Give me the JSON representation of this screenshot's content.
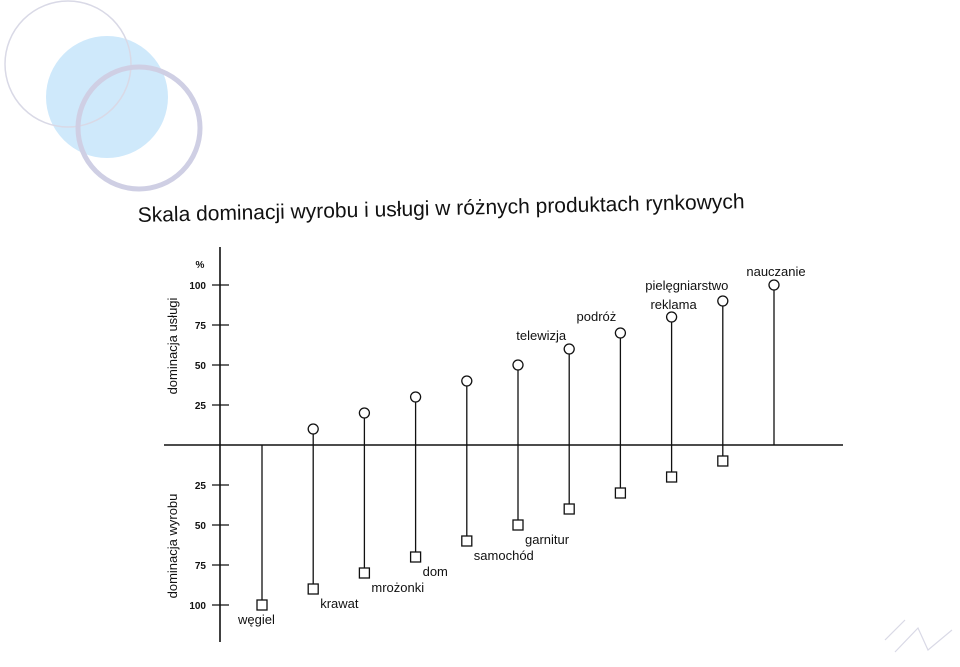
{
  "title": "Skala dominacji wyrobu i usługi w różnych produktach rynkowych",
  "colors": {
    "deco_fill": "#cfe9fb",
    "deco_ring_light": "#d9d9e6",
    "deco_ring_dark": "#cfcfe4",
    "ink": "#111111"
  },
  "chart_data": {
    "type": "scatter",
    "style": "paired-stem",
    "y_unit": "%",
    "y_upper_label": "dominacja usługi",
    "y_lower_label": "dominacja wyrobu",
    "y_ticks_upper": [
      "25",
      "50",
      "75",
      "100"
    ],
    "y_ticks_lower": [
      "25",
      "50",
      "75",
      "100"
    ],
    "ylim": [
      -100,
      100
    ],
    "markers": {
      "service": "circle",
      "product": "square"
    },
    "items": [
      {
        "label": "węgiel",
        "service": 0,
        "product": 100
      },
      {
        "label": "krawat",
        "service": 10,
        "product": 90
      },
      {
        "label": "mrożonki",
        "service": 20,
        "product": 80
      },
      {
        "label": "dom",
        "service": 30,
        "product": 70
      },
      {
        "label": "samochód",
        "service": 40,
        "product": 60
      },
      {
        "label": "garnitur",
        "service": 50,
        "product": 50
      },
      {
        "label": "telewizja",
        "service": 60,
        "product": 40
      },
      {
        "label": "podróż",
        "service": 70,
        "product": 30
      },
      {
        "label": "reklama",
        "service": 80,
        "product": 20
      },
      {
        "label": "pielęgniarstwo",
        "service": 90,
        "product": 10
      },
      {
        "label": "nauczanie",
        "service": 100,
        "product": 0
      }
    ]
  }
}
